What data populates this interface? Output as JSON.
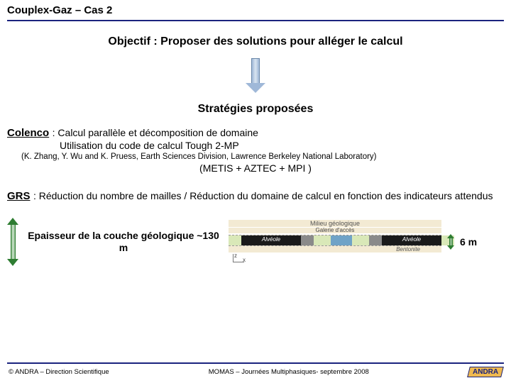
{
  "title": "Couplex-Gaz – Cas 2",
  "objective": "Objectif : Proposer des solutions pour alléger le calcul",
  "strategies_heading": "Stratégies proposées",
  "colenco": {
    "name": "Colenco",
    "line1": " : Calcul parallèle et décomposition de domaine",
    "line2": "Utilisation du code de calcul Tough 2-MP",
    "citation": "(K. Zhang, Y. Wu and K. Pruess, Earth Sciences Division, Lawrence Berkeley National Laboratory)",
    "metis": "(METIS + AZTEC + MPI )"
  },
  "grs": {
    "name": "GRS",
    "text": " : Réduction du nombre de mailles / Réduction du domaine de calcul en fonction des indicateurs attendus"
  },
  "diagram": {
    "thickness": "Epaisseur de la couche géologique ~130 m",
    "top_label": "Milieu géologique",
    "gallery_label": "Galerie d'accès",
    "alveole": "Alvéole",
    "bentonite": "Bentonite",
    "six_m": "6 m",
    "segments": [
      {
        "class": "seg-green",
        "w": 6
      },
      {
        "class": "seg-black",
        "w": 28,
        "alv": true
      },
      {
        "class": "seg-gray",
        "w": 6
      },
      {
        "class": "seg-green",
        "w": 8
      },
      {
        "class": "seg-blue",
        "w": 10
      },
      {
        "class": "seg-green",
        "w": 8
      },
      {
        "class": "seg-gray",
        "w": 6
      },
      {
        "class": "seg-black",
        "w": 28,
        "alv": true
      },
      {
        "class": "seg-green",
        "w": 6
      }
    ],
    "axis": {
      "z": "z",
      "x": "x"
    }
  },
  "footer": {
    "left": "© ANDRA – Direction Scientifique",
    "center": "MOMAS – Journées Multiphasiques- septembre 2008",
    "logo": "ANDRA"
  }
}
